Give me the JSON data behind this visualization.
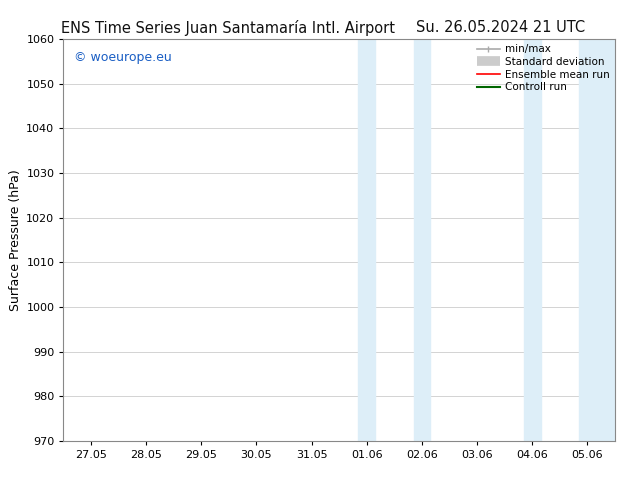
{
  "title_left": "ENS Time Series Juan Santamaría Intl. Airport",
  "title_right": "Su. 26.05.2024 21 UTC",
  "ylabel": "Surface Pressure (hPa)",
  "ylim": [
    970,
    1060
  ],
  "yticks": [
    970,
    980,
    990,
    1000,
    1010,
    1020,
    1030,
    1040,
    1050,
    1060
  ],
  "xtick_labels": [
    "27.05",
    "28.05",
    "29.05",
    "30.05",
    "31.05",
    "01.06",
    "02.06",
    "03.06",
    "04.06",
    "05.06"
  ],
  "xtick_positions": [
    0,
    1,
    2,
    3,
    4,
    5,
    6,
    7,
    8,
    9
  ],
  "x_min": -0.5,
  "x_max": 9.5,
  "shaded_bands": [
    {
      "x_start": 4.85,
      "x_end": 5.15,
      "color": "#ddeef8"
    },
    {
      "x_start": 5.85,
      "x_end": 6.15,
      "color": "#ddeef8"
    },
    {
      "x_start": 7.85,
      "x_end": 8.15,
      "color": "#ddeef8"
    },
    {
      "x_start": 8.85,
      "x_end": 9.5,
      "color": "#ddeef8"
    }
  ],
  "watermark": "© woeurope.eu",
  "watermark_color": "#1a5ec4",
  "bg_color": "#ffffff",
  "plot_bg_color": "#ffffff",
  "grid_color": "#cccccc",
  "border_color": "#888888",
  "legend_entries": [
    {
      "label": "min/max",
      "color": "#aaaaaa",
      "lw": 1.2
    },
    {
      "label": "Standard deviation",
      "color": "#cccccc",
      "lw": 7
    },
    {
      "label": "Ensemble mean run",
      "color": "#ff0000",
      "lw": 1.2
    },
    {
      "label": "Controll run",
      "color": "#006600",
      "lw": 1.5
    }
  ],
  "title_fontsize": 10.5,
  "tick_fontsize": 8,
  "ylabel_fontsize": 9,
  "watermark_fontsize": 9,
  "legend_fontsize": 7.5
}
